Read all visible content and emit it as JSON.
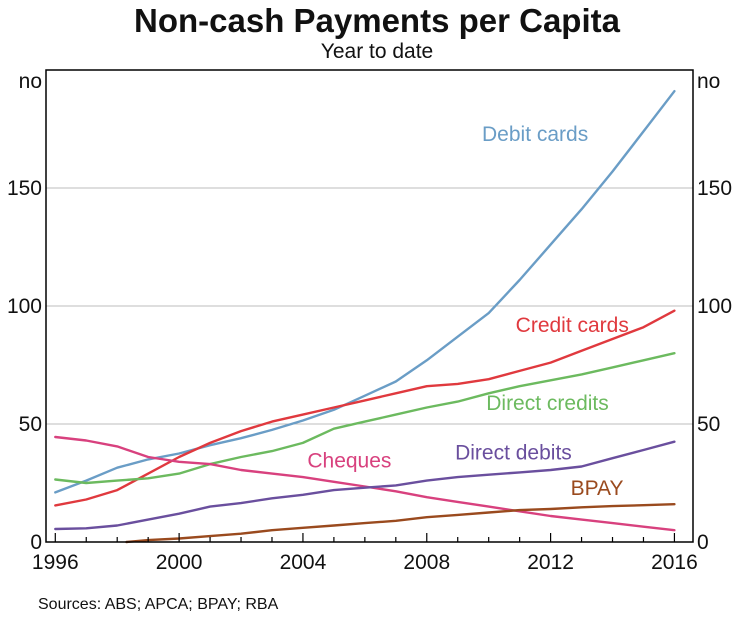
{
  "chart_data": {
    "type": "line",
    "title": "Non-cash Payments per Capita",
    "subtitle": "Year to date",
    "y_unit_left": "no",
    "y_unit_right": "no",
    "source": "Sources:   ABS; APCA; BPAY; RBA",
    "xlim": [
      1995.7,
      2016.6
    ],
    "ylim": [
      0,
      200
    ],
    "x_ticks": [
      1996,
      2000,
      2004,
      2008,
      2012,
      2016
    ],
    "y_ticks": [
      0,
      50,
      100,
      150
    ],
    "grid": true,
    "legend": "inline labels",
    "series": [
      {
        "name": "Debit cards",
        "color": "#6a9dc6",
        "points": [
          [
            1996,
            21
          ],
          [
            1997,
            26
          ],
          [
            1998,
            31.5
          ],
          [
            1999,
            35
          ],
          [
            2000,
            37.5
          ],
          [
            2001,
            41
          ],
          [
            2002,
            44
          ],
          [
            2003,
            47.5
          ],
          [
            2004,
            51.5
          ],
          [
            2005,
            56
          ],
          [
            2006,
            62
          ],
          [
            2007,
            68
          ],
          [
            2008,
            77
          ],
          [
            2009,
            87
          ],
          [
            2010,
            97
          ],
          [
            2011,
            111
          ],
          [
            2012,
            126
          ],
          [
            2013,
            141
          ],
          [
            2014,
            157
          ],
          [
            2015,
            174
          ],
          [
            2016,
            191
          ]
        ]
      },
      {
        "name": "Credit cards",
        "color": "#e0393e",
        "points": [
          [
            1996,
            15.5
          ],
          [
            1997,
            18
          ],
          [
            1998,
            22
          ],
          [
            1999,
            29
          ],
          [
            2000,
            36
          ],
          [
            2001,
            42
          ],
          [
            2002,
            47
          ],
          [
            2003,
            51
          ],
          [
            2004,
            54
          ],
          [
            2005,
            57
          ],
          [
            2006,
            60
          ],
          [
            2007,
            63
          ],
          [
            2008,
            66
          ],
          [
            2009,
            67
          ],
          [
            2010,
            69
          ],
          [
            2011,
            72.5
          ],
          [
            2012,
            76
          ],
          [
            2013,
            81
          ],
          [
            2014,
            86
          ],
          [
            2015,
            91
          ],
          [
            2016,
            98
          ]
        ]
      },
      {
        "name": "Direct credits",
        "color": "#6cba5f",
        "points": [
          [
            1996,
            26.5
          ],
          [
            1997,
            25
          ],
          [
            1998,
            26
          ],
          [
            1999,
            27
          ],
          [
            2000,
            29
          ],
          [
            2001,
            33
          ],
          [
            2002,
            36
          ],
          [
            2003,
            38.5
          ],
          [
            2004,
            42
          ],
          [
            2005,
            48
          ],
          [
            2006,
            51
          ],
          [
            2007,
            54
          ],
          [
            2008,
            57
          ],
          [
            2009,
            59.5
          ],
          [
            2010,
            63
          ],
          [
            2011,
            66
          ],
          [
            2012,
            68.5
          ],
          [
            2013,
            71
          ],
          [
            2014,
            74
          ],
          [
            2015,
            77
          ],
          [
            2016,
            80
          ]
        ]
      },
      {
        "name": "Cheques",
        "color": "#d8417e",
        "points": [
          [
            1996,
            44.5
          ],
          [
            1997,
            43
          ],
          [
            1998,
            40.5
          ],
          [
            1999,
            36
          ],
          [
            2000,
            34
          ],
          [
            2001,
            33
          ],
          [
            2002,
            30.5
          ],
          [
            2003,
            29
          ],
          [
            2004,
            27.5
          ],
          [
            2005,
            25.5
          ],
          [
            2006,
            23.5
          ],
          [
            2007,
            21.5
          ],
          [
            2008,
            19
          ],
          [
            2009,
            17
          ],
          [
            2010,
            15
          ],
          [
            2011,
            13
          ],
          [
            2012,
            11
          ],
          [
            2013,
            9.5
          ],
          [
            2014,
            8
          ],
          [
            2015,
            6.5
          ],
          [
            2016,
            5
          ]
        ]
      },
      {
        "name": "Direct debits",
        "color": "#6a4f9e",
        "points": [
          [
            1996,
            5.5
          ],
          [
            1997,
            5.8
          ],
          [
            1998,
            7
          ],
          [
            1999,
            9.5
          ],
          [
            2000,
            12
          ],
          [
            2001,
            15
          ],
          [
            2002,
            16.5
          ],
          [
            2003,
            18.5
          ],
          [
            2004,
            20
          ],
          [
            2005,
            22
          ],
          [
            2006,
            23
          ],
          [
            2007,
            24
          ],
          [
            2008,
            26
          ],
          [
            2009,
            27.5
          ],
          [
            2010,
            28.5
          ],
          [
            2011,
            29.5
          ],
          [
            2012,
            30.5
          ],
          [
            2013,
            32
          ],
          [
            2014,
            35.5
          ],
          [
            2015,
            39
          ],
          [
            2016,
            42.5
          ]
        ]
      },
      {
        "name": "BPAY",
        "color": "#9a4a1e",
        "points": [
          [
            1998.3,
            0
          ],
          [
            1999,
            0.8
          ],
          [
            2000,
            1.5
          ],
          [
            2001,
            2.5
          ],
          [
            2002,
            3.5
          ],
          [
            2003,
            5
          ],
          [
            2004,
            6
          ],
          [
            2005,
            7
          ],
          [
            2006,
            8
          ],
          [
            2007,
            9
          ],
          [
            2008,
            10.5
          ],
          [
            2009,
            11.5
          ],
          [
            2010,
            12.5
          ],
          [
            2011,
            13.5
          ],
          [
            2012,
            14
          ],
          [
            2013,
            14.7
          ],
          [
            2014,
            15.2
          ],
          [
            2015,
            15.6
          ],
          [
            2016,
            16
          ]
        ]
      }
    ]
  }
}
